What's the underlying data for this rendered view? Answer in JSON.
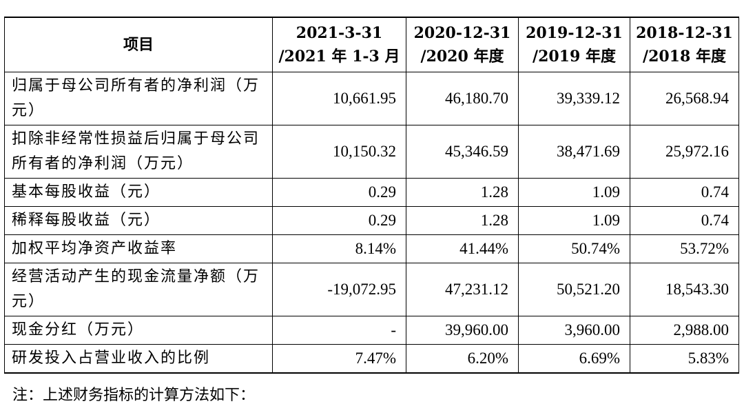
{
  "table": {
    "header": {
      "item": "项目",
      "periods": [
        {
          "line1": "2021-3-31",
          "line2": "/2021 年 1-3 月"
        },
        {
          "line1": "2020-12-31",
          "line2": "/2020 年度"
        },
        {
          "line1": "2019-12-31",
          "line2": "/2019 年度"
        },
        {
          "line1": "2018-12-31",
          "line2": "/2018 年度"
        }
      ]
    },
    "rows": [
      {
        "label": "归属于母公司所有者的净利润（万元）",
        "values": [
          "10,661.95",
          "46,180.70",
          "39,339.12",
          "26,568.94"
        ]
      },
      {
        "label": "扣除非经常性损益后归属于母公司所有者的净利润（万元）",
        "values": [
          "10,150.32",
          "45,346.59",
          "38,471.69",
          "25,972.16"
        ]
      },
      {
        "label": "基本每股收益（元）",
        "values": [
          "0.29",
          "1.28",
          "1.09",
          "0.74"
        ]
      },
      {
        "label": "稀释每股收益（元）",
        "values": [
          "0.29",
          "1.28",
          "1.09",
          "0.74"
        ]
      },
      {
        "label": "加权平均净资产收益率",
        "values": [
          "8.14%",
          "41.44%",
          "50.74%",
          "53.72%"
        ]
      },
      {
        "label": "经营活动产生的现金流量净额（万元）",
        "values": [
          "-19,072.95",
          "47,231.12",
          "50,521.20",
          "18,543.30"
        ]
      },
      {
        "label": "现金分红（万元）",
        "values": [
          "-",
          "39,960.00",
          "3,960.00",
          "2,988.00"
        ]
      },
      {
        "label": "研发投入占营业收入的比例",
        "values": [
          "7.47%",
          "6.20%",
          "6.69%",
          "5.83%"
        ]
      }
    ]
  },
  "note": "注：上述财务指标的计算方法如下："
}
